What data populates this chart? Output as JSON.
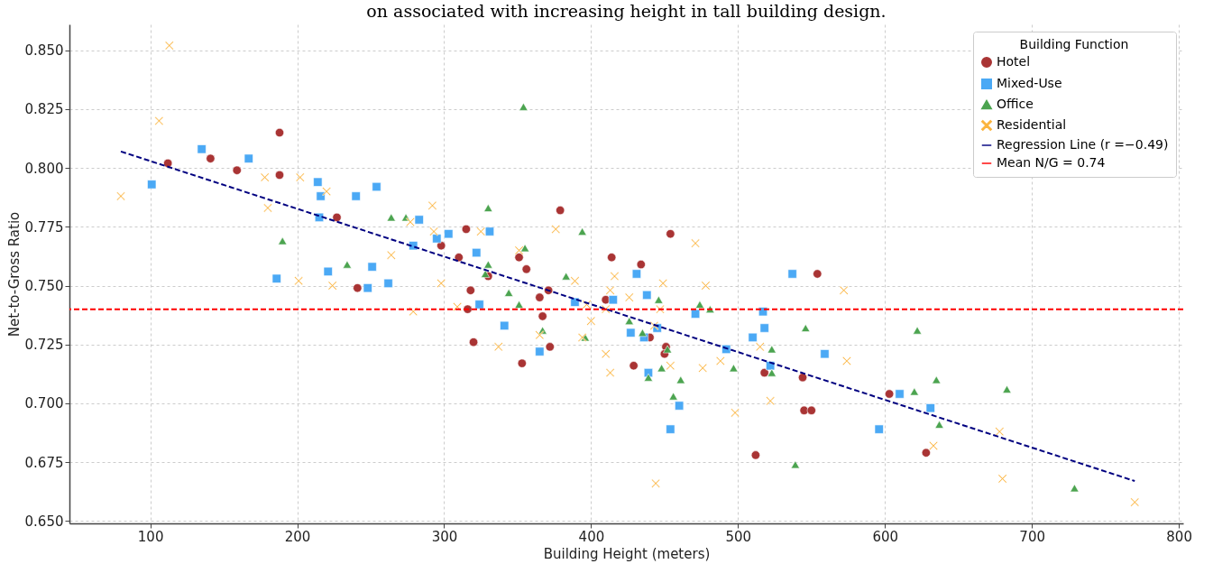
{
  "chart_data": {
    "type": "scatter",
    "title": "on associated with increasing height in tall building design.",
    "xlabel": "Building Height (meters)",
    "ylabel": "Net-to-Gross Ratio",
    "legend_title": "Building Function",
    "legend": "top right",
    "grid": true,
    "xlim": [
      45,
      803
    ],
    "xticks": [
      100,
      200,
      300,
      400,
      500,
      600,
      700,
      800
    ],
    "ylim": [
      0.649,
      0.861
    ],
    "yticks": [
      {
        "value": 0.65,
        "label": "0.650"
      },
      {
        "value": 0.675,
        "label": "0.675"
      },
      {
        "value": 0.7,
        "label": "0.700"
      },
      {
        "value": 0.725,
        "label": "0.725"
      },
      {
        "value": 0.75,
        "label": "0.750"
      },
      {
        "value": 0.775,
        "label": "0.775"
      },
      {
        "value": 0.8,
        "label": "0.800"
      },
      {
        "value": 0.825,
        "label": "0.825"
      },
      {
        "value": 0.85,
        "label": "0.850"
      }
    ],
    "series": [
      {
        "name": "Hotel",
        "type": "scatter",
        "marker": "circle",
        "color": "#a52a2a",
        "x": [
          112,
          141,
          159,
          188,
          188,
          227,
          241,
          298,
          310,
          315,
          318,
          316,
          320,
          330,
          351,
          356,
          353,
          365,
          371,
          367,
          372,
          379,
          410,
          414,
          434,
          440,
          429,
          451,
          450,
          454,
          512,
          518,
          544,
          545,
          550,
          554,
          603,
          628
        ],
        "values": [
          0.802,
          0.804,
          0.799,
          0.815,
          0.797,
          0.779,
          0.749,
          0.767,
          0.762,
          0.774,
          0.748,
          0.74,
          0.726,
          0.754,
          0.762,
          0.757,
          0.717,
          0.745,
          0.748,
          0.737,
          0.724,
          0.782,
          0.744,
          0.762,
          0.759,
          0.728,
          0.716,
          0.724,
          0.721,
          0.772,
          0.678,
          0.713,
          0.711,
          0.697,
          0.697,
          0.755,
          0.704,
          0.679
        ]
      },
      {
        "name": "Mixed-Use",
        "type": "scatter",
        "marker": "square",
        "color": "#42a5f5",
        "x": [
          101,
          135,
          167,
          214,
          216,
          215,
          240,
          254,
          283,
          279,
          221,
          251,
          186,
          248,
          262,
          295,
          303,
          331,
          322,
          324,
          341,
          365,
          389,
          415,
          427,
          436,
          438,
          439,
          445,
          460,
          454,
          471,
          431,
          492,
          510,
          517,
          518,
          522,
          537,
          559,
          596,
          610,
          631
        ],
        "values": [
          0.793,
          0.808,
          0.804,
          0.794,
          0.788,
          0.779,
          0.788,
          0.792,
          0.778,
          0.767,
          0.756,
          0.758,
          0.753,
          0.749,
          0.751,
          0.77,
          0.772,
          0.773,
          0.764,
          0.742,
          0.733,
          0.722,
          0.743,
          0.744,
          0.73,
          0.728,
          0.746,
          0.713,
          0.732,
          0.699,
          0.689,
          0.738,
          0.755,
          0.723,
          0.728,
          0.739,
          0.732,
          0.716,
          0.755,
          0.721,
          0.689,
          0.704,
          0.698
        ]
      },
      {
        "name": "Office",
        "type": "scatter",
        "marker": "triangle",
        "color": "#43a047",
        "x": [
          190,
          234,
          264,
          274,
          354,
          330,
          394,
          355,
          330,
          328,
          383,
          344,
          351,
          367,
          396,
          426,
          435,
          446,
          452,
          439,
          448,
          461,
          456,
          474,
          481,
          497,
          523,
          523,
          546,
          539,
          622,
          635,
          620,
          683,
          637,
          729
        ],
        "values": [
          0.769,
          0.759,
          0.779,
          0.779,
          0.826,
          0.783,
          0.773,
          0.766,
          0.759,
          0.755,
          0.754,
          0.747,
          0.742,
          0.731,
          0.728,
          0.735,
          0.73,
          0.744,
          0.723,
          0.711,
          0.715,
          0.71,
          0.703,
          0.742,
          0.74,
          0.715,
          0.723,
          0.713,
          0.732,
          0.674,
          0.731,
          0.71,
          0.705,
          0.706,
          0.691,
          0.664
        ]
      },
      {
        "name": "Residential",
        "type": "scatter",
        "marker": "cross",
        "color": "#fbb034",
        "x": [
          113,
          106,
          80,
          178,
          180,
          202,
          220,
          277,
          264,
          292,
          293,
          201,
          224,
          279,
          325,
          376,
          351,
          471,
          416,
          298,
          309,
          337,
          365,
          389,
          394,
          397,
          400,
          410,
          413,
          426,
          410,
          413,
          447,
          449,
          478,
          443,
          454,
          476,
          488,
          515,
          498,
          522,
          444,
          572,
          574,
          633,
          678,
          680,
          770
        ],
        "values": [
          0.852,
          0.82,
          0.788,
          0.796,
          0.783,
          0.796,
          0.79,
          0.777,
          0.763,
          0.784,
          0.773,
          0.752,
          0.75,
          0.739,
          0.773,
          0.774,
          0.765,
          0.768,
          0.754,
          0.751,
          0.741,
          0.724,
          0.729,
          0.752,
          0.728,
          0.742,
          0.735,
          0.74,
          0.748,
          0.745,
          0.721,
          0.713,
          0.74,
          0.751,
          0.75,
          0.733,
          0.716,
          0.715,
          0.718,
          0.724,
          0.696,
          0.701,
          0.666,
          0.748,
          0.718,
          0.682,
          0.688,
          0.668,
          0.658
        ]
      },
      {
        "name": "Regression Line (r =−0.49)",
        "type": "line",
        "line_style": "dashed",
        "color": "#000080",
        "x": [
          80,
          770
        ],
        "values": [
          0.807,
          0.667
        ]
      }
    ],
    "ref_lines": [
      {
        "axis": "y",
        "value": 0.74,
        "label": "Mean N/G = 0.74",
        "color": "#ff0000",
        "line_style": "dashed"
      }
    ]
  }
}
